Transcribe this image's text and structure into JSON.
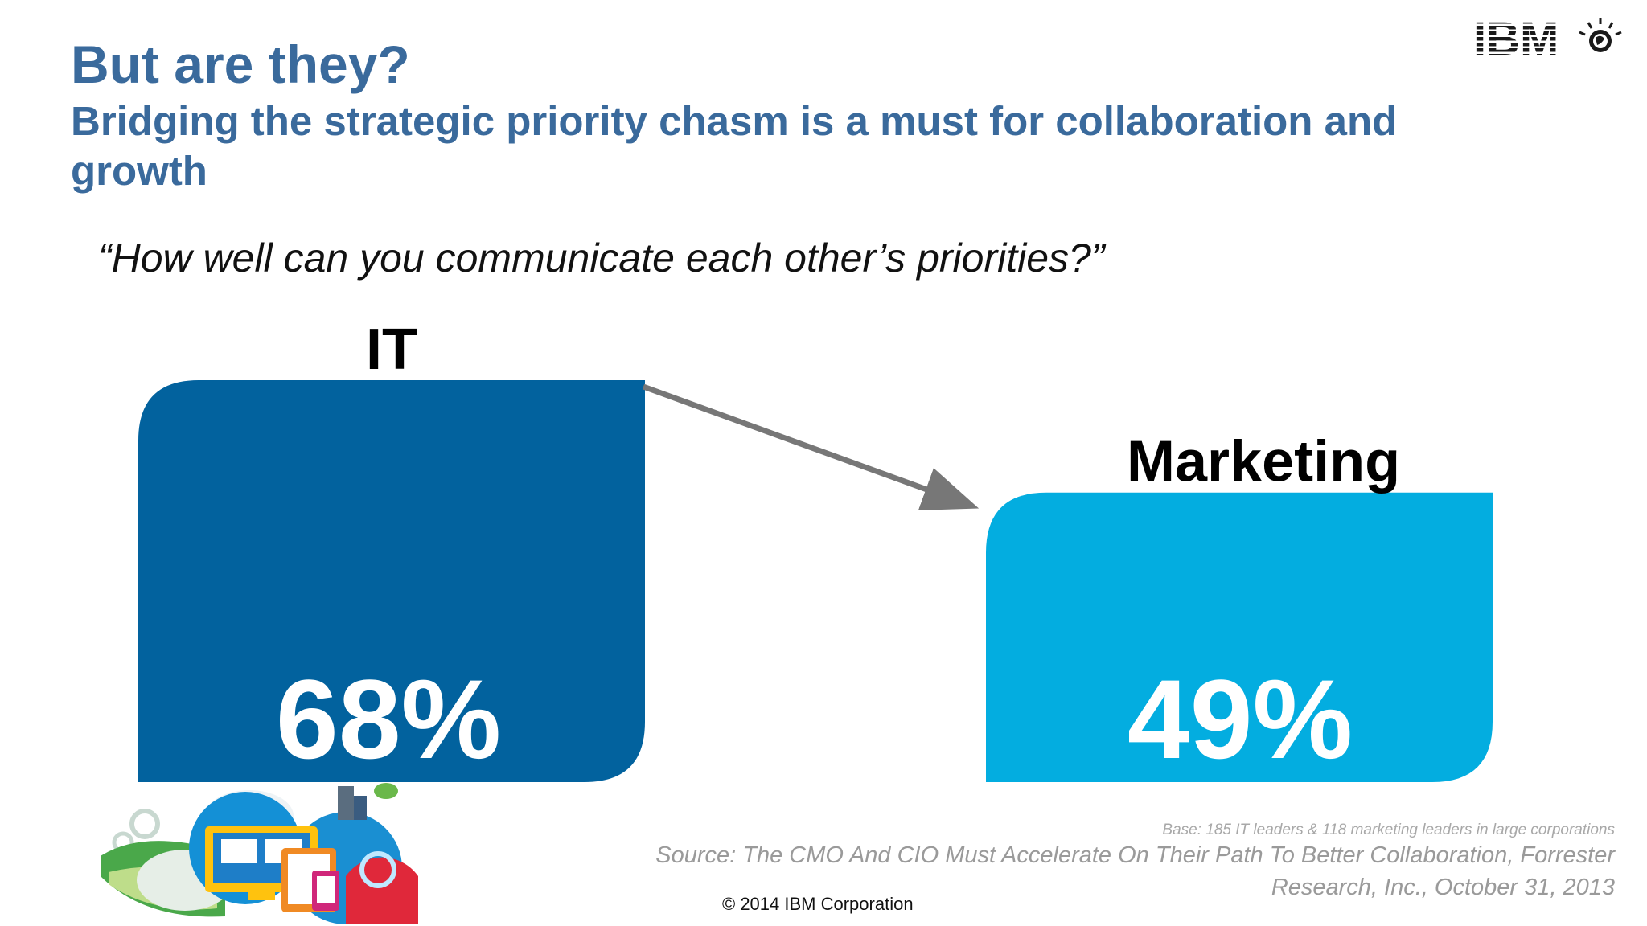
{
  "header": {
    "title": "But are they?",
    "subtitle": "Bridging the strategic priority chasm is a must for collaboration and growth",
    "brand": "IBM"
  },
  "question": "“How well can you communicate each other’s priorities?”",
  "chart_data": {
    "type": "bar",
    "categories": [
      "IT",
      "Marketing"
    ],
    "values": [
      68,
      49
    ],
    "value_labels": [
      "68%",
      "49%"
    ],
    "unit": "%",
    "ylim": [
      0,
      68
    ],
    "title": "",
    "xlabel": "",
    "ylabel": "",
    "grid": false,
    "legend": "none",
    "colors": [
      "#02629e",
      "#03ade0"
    ],
    "annotation": "arrow from IT bar to Marketing bar"
  },
  "footer": {
    "base_note": "Base: 185 IT leaders & 118 marketing leaders in large corporations",
    "source": "Source: The CMO And CIO Must Accelerate On Their Path To Better Collaboration, Forrester Research, Inc., October 31, 2013",
    "copyright": "© 2014 IBM Corporation"
  },
  "colors": {
    "title": "#3a6a9c",
    "it_bar": "#02629e",
    "marketing_bar": "#03ade0",
    "arrow": "#777777"
  },
  "icons": [
    "ibm-logo-icon",
    "cloud-devices-illustration-icon"
  ]
}
